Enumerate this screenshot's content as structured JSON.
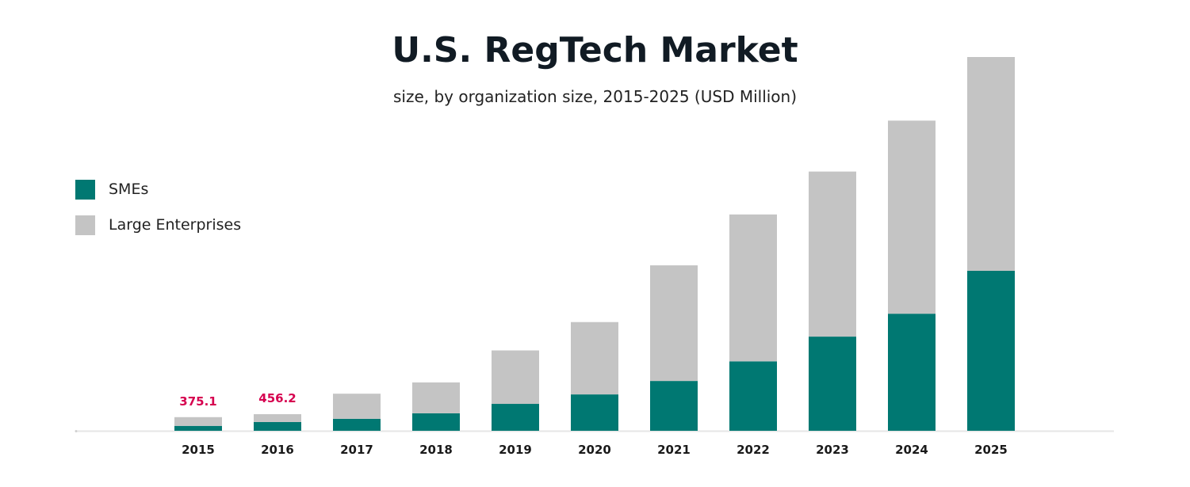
{
  "colors": {
    "sme": "#007872",
    "large": "#c4c4c4",
    "label": "#d6004f",
    "axis": "#e6e6e6"
  },
  "legend": {
    "sme_label": "SMEs",
    "large_label": "Large Enterprises"
  },
  "chart_data": {
    "type": "bar",
    "stacked": true,
    "title": "U.S. RegTech Market",
    "subtitle": "size, by organization size, 2015-2025 (USD Million)",
    "xlabel": "",
    "ylabel": "",
    "grid": false,
    "legend_position": "left",
    "categories": [
      "2015",
      "2016",
      "2017",
      "2018",
      "2019",
      "2020",
      "2021",
      "2022",
      "2023",
      "2024",
      "2025"
    ],
    "series": [
      {
        "name": "SMEs",
        "values": [
          135,
          240,
          330,
          480,
          740,
          1000,
          1370,
          1910,
          2590,
          3220,
          4400
        ]
      },
      {
        "name": "Large Enterprises",
        "values": [
          240.1,
          216.2,
          690,
          850,
          1470,
          1990,
          3180,
          4040,
          4540,
          5310,
          5880
        ]
      }
    ],
    "totals_labels": [
      "375.1",
      "456.2",
      "",
      "",
      "",
      "",
      "",
      "",
      "",
      "",
      ""
    ],
    "ylim": [
      0,
      10280
    ]
  }
}
